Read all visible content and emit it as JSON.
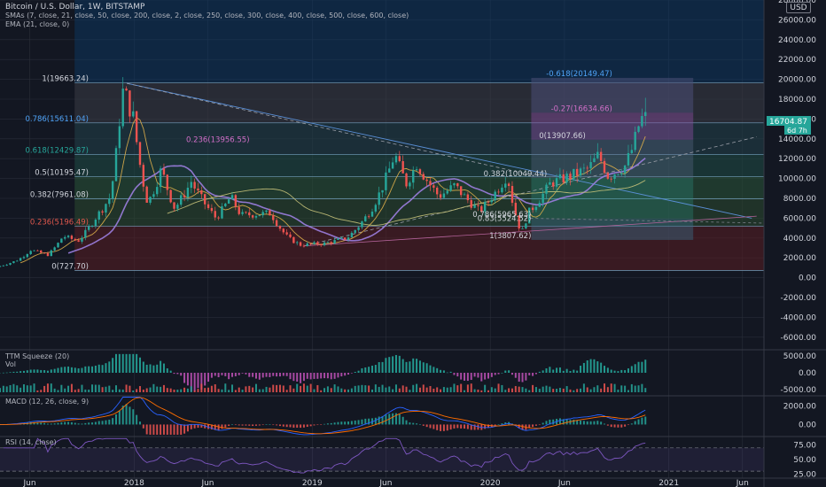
{
  "header": {
    "symbol_line": "Bitcoin / U.S. Dollar, 1W, BITSTAMP",
    "sma_line": "SMAs (7, close, 21, close, 50, close, 200, close, 2, close, 250, close, 300, close, 400, close, 500, close, 600, close)",
    "ema_line": "EMA (21, close, 0)",
    "currency_button": "USD"
  },
  "price_badges": {
    "last_price": "16704.87",
    "countdown": "6d 7h"
  },
  "colors": {
    "background": "#131722",
    "up": "#26a69a",
    "down": "#ef5350",
    "grid": "#2a2e39",
    "axis_text": "#d1d4dc",
    "fib_text": "#4fa3f7",
    "fib_text_red": "#e0584d",
    "fib_text_pink": "#d16ec8",
    "macd_line": "#2962ff",
    "signal_line": "#ff6d00",
    "rsi_line": "#7e57c2"
  },
  "chart_data": [
    {
      "type": "candlestick",
      "title": "Bitcoin / U.S. Dollar, 1W, BITSTAMP",
      "x_range": [
        "2017-04-01",
        "2021-07-15"
      ],
      "ylim": [
        -7000,
        28000
      ],
      "y_ticks": [
        "28000.00",
        "26000.00",
        "24000.00",
        "22000.00",
        "20000.00",
        "18000.00",
        "16000.00",
        "14000.00",
        "12000.00",
        "10000.00",
        "8000.00",
        "6000.00",
        "4000.00",
        "2000.00",
        "0.00",
        "-2000.00",
        "-4000.00",
        "-6000.00"
      ],
      "x_ticks": [
        "Jun",
        "2018",
        "Jun",
        "2019",
        "Jun",
        "2020",
        "Jun",
        "2021",
        "Jun"
      ],
      "last_price": 16704.87,
      "path": [
        [
          "2017-04-01",
          1080
        ],
        [
          "2017-05-15",
          1800
        ],
        [
          "2017-06-10",
          2800
        ],
        [
          "2017-07-15",
          2300
        ],
        [
          "2017-08-15",
          4200
        ],
        [
          "2017-09-15",
          3700
        ],
        [
          "2017-10-20",
          6000
        ],
        [
          "2017-11-20",
          8200
        ],
        [
          "2017-12-10",
          16500
        ],
        [
          "2017-12-17",
          19100
        ],
        [
          "2018-01-07",
          16000
        ],
        [
          "2018-02-05",
          7500
        ],
        [
          "2018-03-05",
          11000
        ],
        [
          "2018-04-01",
          7000
        ],
        [
          "2018-05-05",
          9700
        ],
        [
          "2018-06-25",
          6000
        ],
        [
          "2018-07-25",
          8200
        ],
        [
          "2018-08-15",
          6300
        ],
        [
          "2018-10-15",
          6500
        ],
        [
          "2018-11-20",
          4000
        ],
        [
          "2018-12-15",
          3300
        ],
        [
          "2019-02-01",
          3450
        ],
        [
          "2019-03-20",
          4000
        ],
        [
          "2019-05-10",
          7000
        ],
        [
          "2019-06-26",
          12500
        ],
        [
          "2019-07-20",
          9500
        ],
        [
          "2019-08-10",
          11500
        ],
        [
          "2019-09-25",
          8200
        ],
        [
          "2019-10-27",
          9300
        ],
        [
          "2019-12-17",
          6700
        ],
        [
          "2020-02-12",
          10400
        ],
        [
          "2020-03-12",
          4500
        ],
        [
          "2020-03-25",
          6500
        ],
        [
          "2020-05-10",
          9500
        ],
        [
          "2020-07-27",
          11000
        ],
        [
          "2020-08-17",
          12400
        ],
        [
          "2020-09-06",
          10200
        ],
        [
          "2020-10-10",
          11300
        ],
        [
          "2020-10-25",
          13000
        ],
        [
          "2020-11-07",
          15300
        ],
        [
          "2020-11-20",
          16700
        ]
      ],
      "fib_levels": [
        {
          "label": "1(19663.24)",
          "value": 19663.24
        },
        {
          "label": "0.786(15611.04)",
          "value": 15611.04
        },
        {
          "label": "0.618(12429.87)",
          "value": 12429.87
        },
        {
          "label": "0.5(10195.47)",
          "value": 10195.47
        },
        {
          "label": "0.382(7961.08)",
          "value": 7961.08
        },
        {
          "label": "0.236(5196.49)",
          "value": 5196.49
        },
        {
          "label": "0(727.70)",
          "value": 727.7
        }
      ],
      "fib_labels_right": [
        {
          "label": "-0.618(20149.47)",
          "value": 20149.47
        },
        {
          "label": "-0.27(16634.66)",
          "value": 16634.66
        },
        {
          "label": "0(13907.66)",
          "value": 13907.66
        },
        {
          "label": "0.382(10049.44)",
          "value": 10049.44
        },
        {
          "label": "0.786(5965.63)",
          "value": 5965.63
        },
        {
          "label": "0.83(5524.52)",
          "value": 5524.52
        },
        {
          "label": "1(3807.62)",
          "value": 3807.62
        }
      ],
      "overlap_label": {
        "label": "0.236(13956.55)",
        "value": 13956.55
      }
    },
    {
      "type": "bar",
      "title": "TTM Squeeze (20)",
      "subtitle": "Vol",
      "y_ticks": [
        "5000.00",
        "0.00",
        "-5000.00"
      ],
      "ylim": [
        -6500,
        6500
      ]
    },
    {
      "type": "bar",
      "title": "MACD (12, 26, close, 9)",
      "y_ticks": [
        "2000.00",
        "0.00"
      ],
      "ylim": [
        -1200,
        3000
      ]
    },
    {
      "type": "line",
      "title": "RSI (14, close)",
      "y_ticks": [
        "75.00",
        "50.00",
        "25.00"
      ],
      "ylim": [
        18,
        88
      ],
      "bands": [
        30,
        70
      ]
    }
  ]
}
